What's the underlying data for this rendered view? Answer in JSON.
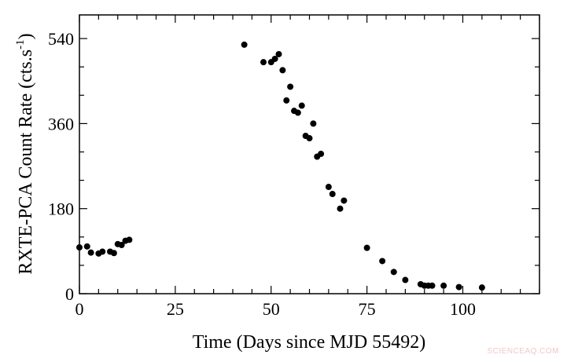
{
  "chart_data": {
    "type": "scatter",
    "title": "",
    "xlabel": "Time (Days since MJD 55492)",
    "ylabel": "RXTE-PCA Count Rate (cts.s",
    "ylabel_superscript": "-1",
    "ylabel_suffix": ")",
    "xlim": [
      0,
      120
    ],
    "ylim": [
      0,
      590
    ],
    "x_ticks": [
      0,
      25,
      50,
      75,
      100
    ],
    "y_ticks": [
      0,
      180,
      360,
      540
    ],
    "x_minor_step": 5,
    "y_minor_step": 60,
    "grid": false,
    "legend": null,
    "marker_color": "#000000",
    "series": [
      {
        "name": "RXTE-PCA",
        "x": [
          0,
          2,
          3,
          5,
          6,
          8,
          9,
          10,
          11,
          12,
          13,
          43,
          48,
          50,
          51,
          52,
          53,
          54,
          55,
          56,
          57,
          58,
          59,
          60,
          61,
          62,
          63,
          65,
          66,
          68,
          69,
          75,
          79,
          82,
          85,
          89,
          90,
          91,
          92,
          95,
          99,
          105
        ],
        "y": [
          98,
          100,
          87,
          85,
          89,
          89,
          86,
          105,
          103,
          112,
          114,
          527,
          490,
          490,
          497,
          507,
          473,
          409,
          438,
          387,
          383,
          398,
          334,
          329,
          360,
          290,
          296,
          226,
          211,
          180,
          197,
          97,
          69,
          46,
          29,
          20,
          17,
          17,
          17,
          17,
          14,
          13
        ]
      }
    ]
  },
  "watermark": "SCIENCEAQ.COM"
}
